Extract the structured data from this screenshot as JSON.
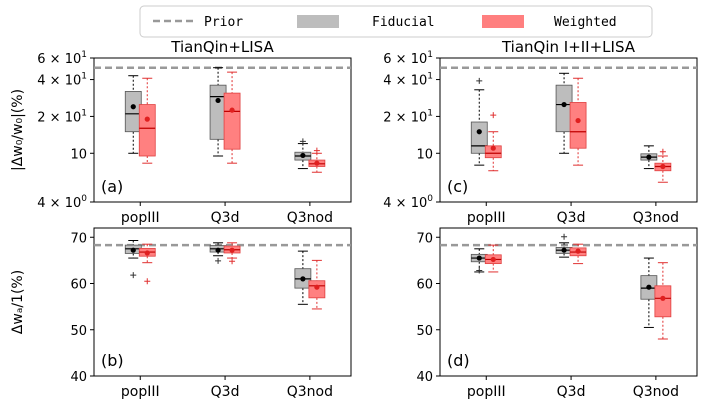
{
  "legend": {
    "items": [
      {
        "label": "Prior",
        "kind": "dashed-line",
        "color": "#999999"
      },
      {
        "label": "Fiducial",
        "kind": "box",
        "color": "#b3b3b3"
      },
      {
        "label": "Weighted",
        "kind": "box",
        "color": "#ff7f7f"
      }
    ]
  },
  "colors": {
    "fiducial_fill": "#bdbdbd",
    "fiducial_edge": "#555555",
    "fiducial_point": "#000000",
    "weighted_fill": "#ff8080",
    "weighted_edge": "#e04040",
    "weighted_point": "#e02020",
    "prior": "#999999"
  },
  "chart_data": [
    {
      "id": "a",
      "type": "box",
      "panel_label": "(a)",
      "title": "TianQin+LISA",
      "ylabel": "|Δw₀/w₀|(%)",
      "yscale": "log",
      "ylim": [
        4,
        60
      ],
      "yticks": [
        {
          "v": 4,
          "b": "4",
          "e": "0"
        },
        {
          "v": 10,
          "b": "10",
          "e": ""
        },
        {
          "v": 20,
          "b": "2",
          "e": "1"
        },
        {
          "v": 40,
          "b": "4",
          "e": "1"
        },
        {
          "v": 60,
          "b": "6",
          "e": "1"
        }
      ],
      "prior": 50,
      "categories": [
        "popIII",
        "Q3d",
        "Q3nod"
      ],
      "series": [
        {
          "name": "Fiducial",
          "boxes": [
            {
              "whislo": 10,
              "q1": 15,
              "med": 21,
              "q3": 32,
              "whishi": 43,
              "mean": 24,
              "fliers": []
            },
            {
              "whislo": 9.5,
              "q1": 13,
              "med": 29,
              "q3": 36,
              "whishi": 50,
              "mean": 27,
              "fliers": []
            },
            {
              "whislo": 7.5,
              "q1": 8.8,
              "med": 9.5,
              "q3": 10.2,
              "whishi": 12,
              "mean": 9.6,
              "fliers": [
                12.5
              ]
            }
          ]
        },
        {
          "name": "Weighted",
          "boxes": [
            {
              "whislo": 8.3,
              "q1": 9.5,
              "med": 16,
              "q3": 25,
              "whishi": 41,
              "mean": 19,
              "fliers": []
            },
            {
              "whislo": 8.3,
              "q1": 10.8,
              "med": 22,
              "q3": 31,
              "whishi": 46,
              "mean": 22.5,
              "fliers": []
            },
            {
              "whislo": 7,
              "q1": 7.8,
              "med": 8.2,
              "q3": 8.8,
              "whishi": 10,
              "mean": 8.3,
              "fliers": [
                10.5
              ]
            }
          ]
        }
      ]
    },
    {
      "id": "c",
      "type": "box",
      "panel_label": "(c)",
      "title": "TianQin I+II+LISA",
      "ylabel": "",
      "yscale": "log",
      "ylim": [
        4,
        60
      ],
      "yticks": [
        {
          "v": 4,
          "b": "4",
          "e": "0"
        },
        {
          "v": 10,
          "b": "10",
          "e": ""
        },
        {
          "v": 20,
          "b": "2",
          "e": "1"
        },
        {
          "v": 40,
          "b": "4",
          "e": "1"
        },
        {
          "v": 60,
          "b": "6",
          "e": "1"
        }
      ],
      "prior": 50,
      "categories": [
        "popIII",
        "Q3d",
        "Q3nod"
      ],
      "series": [
        {
          "name": "Fiducial",
          "boxes": [
            {
              "whislo": 8,
              "q1": 10,
              "med": 11.5,
              "q3": 18,
              "whishi": 33,
              "mean": 15,
              "fliers": [
                39
              ]
            },
            {
              "whislo": 10,
              "q1": 15,
              "med": 25,
              "q3": 36,
              "whishi": 45,
              "mean": 25,
              "fliers": []
            },
            {
              "whislo": 7.5,
              "q1": 8.8,
              "med": 9.3,
              "q3": 9.9,
              "whishi": 11.5,
              "mean": 9.3,
              "fliers": []
            }
          ]
        },
        {
          "name": "Weighted",
          "boxes": [
            {
              "whislo": 7.2,
              "q1": 9.2,
              "med": 10,
              "q3": 11.5,
              "whishi": 15,
              "mean": 11,
              "fliers": [
                20.5
              ]
            },
            {
              "whislo": 8,
              "q1": 11,
              "med": 15,
              "q3": 26,
              "whishi": 41,
              "mean": 18.5,
              "fliers": []
            },
            {
              "whislo": 5.8,
              "q1": 7.2,
              "med": 7.8,
              "q3": 8.3,
              "whishi": 9.5,
              "mean": 7.8,
              "fliers": [
                10.3
              ]
            }
          ]
        }
      ]
    },
    {
      "id": "b",
      "type": "box",
      "panel_label": "(b)",
      "title": "",
      "ylabel": "Δwₐ/1(%)",
      "yscale": "linear",
      "ylim": [
        40,
        72
      ],
      "yticks": [
        {
          "v": 40,
          "b": "40",
          "e": ""
        },
        {
          "v": 50,
          "b": "50",
          "e": ""
        },
        {
          "v": 60,
          "b": "60",
          "e": ""
        },
        {
          "v": 70,
          "b": "70",
          "e": ""
        }
      ],
      "prior": 68.3,
      "categories": [
        "popIII",
        "Q3d",
        "Q3nod"
      ],
      "series": [
        {
          "name": "Fiducial",
          "boxes": [
            {
              "whislo": 65.5,
              "q1": 66.5,
              "med": 67.5,
              "q3": 68.3,
              "whishi": 69.3,
              "mean": 67.2,
              "fliers": [
                61.8
              ]
            },
            {
              "whislo": 66,
              "q1": 66.8,
              "med": 67.5,
              "q3": 68.2,
              "whishi": 68.8,
              "mean": 67.2,
              "fliers": [
                64.9
              ]
            },
            {
              "whislo": 55.5,
              "q1": 59,
              "med": 61,
              "q3": 63.2,
              "whishi": 67,
              "mean": 61,
              "fliers": []
            }
          ]
        },
        {
          "name": "Weighted",
          "boxes": [
            {
              "whislo": 64.5,
              "q1": 65.9,
              "med": 66.8,
              "q3": 67.6,
              "whishi": 68.5,
              "mean": 66.6,
              "fliers": [
                60.5
              ]
            },
            {
              "whislo": 65.5,
              "q1": 66.6,
              "med": 67.3,
              "q3": 68.1,
              "whishi": 68.8,
              "mean": 67.2,
              "fliers": [
                64.8
              ]
            },
            {
              "whislo": 54.5,
              "q1": 56.9,
              "med": 59.5,
              "q3": 60.6,
              "whishi": 65,
              "mean": 59.2,
              "fliers": []
            }
          ]
        }
      ]
    },
    {
      "id": "d",
      "type": "box",
      "panel_label": "(d)",
      "title": "",
      "ylabel": "",
      "yscale": "linear",
      "ylim": [
        40,
        72
      ],
      "yticks": [
        {
          "v": 40,
          "b": "40",
          "e": ""
        },
        {
          "v": 50,
          "b": "50",
          "e": ""
        },
        {
          "v": 60,
          "b": "60",
          "e": ""
        },
        {
          "v": 70,
          "b": "70",
          "e": ""
        }
      ],
      "prior": 68.3,
      "categories": [
        "popIII",
        "Q3d",
        "Q3nod"
      ],
      "series": [
        {
          "name": "Fiducial",
          "boxes": [
            {
              "whislo": 62.5,
              "q1": 64.7,
              "med": 65.5,
              "q3": 66.3,
              "whishi": 67.5,
              "mean": 65.5,
              "fliers": [
                62.8
              ]
            },
            {
              "whislo": 65.7,
              "q1": 66.5,
              "med": 67.2,
              "q3": 67.8,
              "whishi": 68.8,
              "mean": 67.2,
              "fliers": [
                70.1
              ]
            },
            {
              "whislo": 50.5,
              "q1": 56.6,
              "med": 59,
              "q3": 61.7,
              "whishi": 65.5,
              "mean": 59.2,
              "fliers": []
            }
          ]
        },
        {
          "name": "Weighted",
          "boxes": [
            {
              "whislo": 62.5,
              "q1": 64.3,
              "med": 65.2,
              "q3": 66.2,
              "whishi": 68.3,
              "mean": 65.2,
              "fliers": []
            },
            {
              "whislo": 64.3,
              "q1": 66,
              "med": 66.8,
              "q3": 67.7,
              "whishi": 68.5,
              "mean": 67,
              "fliers": []
            },
            {
              "whislo": 48,
              "q1": 52.8,
              "med": 56.8,
              "q3": 59.5,
              "whishi": 64.5,
              "mean": 56.8,
              "fliers": []
            }
          ]
        }
      ]
    }
  ]
}
